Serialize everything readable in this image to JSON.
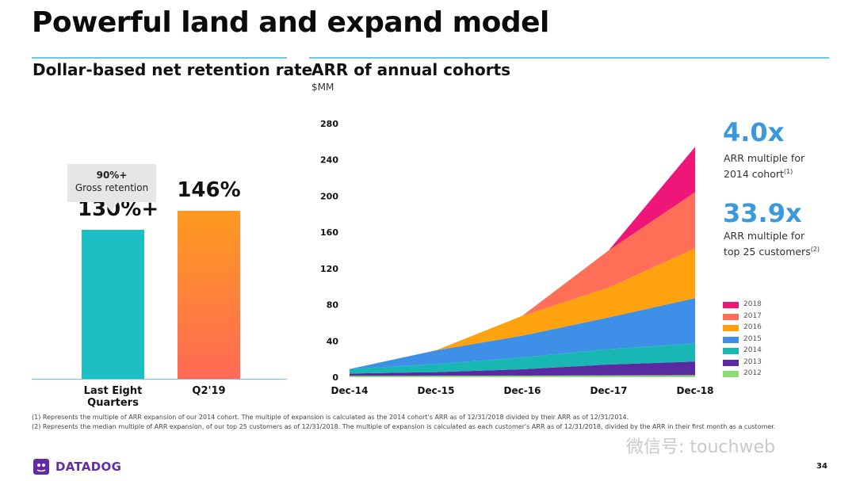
{
  "slide": {
    "title": "Powerful land and expand model",
    "page_number": "34"
  },
  "left_panel": {
    "title": "Dollar-based net retention rate",
    "callout": {
      "value": "90%+",
      "label": "Gross retention"
    }
  },
  "right_panel": {
    "title": "ARR of annual cohorts",
    "units": "$MM",
    "stats": [
      {
        "value": "4.0x",
        "line1": "ARR multiple for",
        "line2": "2014 cohort",
        "note": "(1)"
      },
      {
        "value": "33.9x",
        "line1": "ARR multiple for",
        "line2": "top 25 customers",
        "note": "(2)"
      }
    ]
  },
  "footnotes": [
    "(1) Represents the multiple of ARR expansion of our 2014 cohort. The multiple of expansion is calculated as the 2014 cohort's ARR as of 12/31/2018 divided by their ARR as of 12/31/2014.",
    "(2) Represents the median multiple of ARR expansion, of our top 25 customers as of 12/31/2018. The multiple of expansion is calculated as each customer's ARR as of 12/31/2018, divided by the ARR in their first month as a customer."
  ],
  "logo": {
    "text": "DATADOG"
  },
  "watermark": "微信号: touchweb",
  "colors": {
    "accent_rule": "#6cc7e6",
    "stat_blue": "#3b98db",
    "bar_teal": "#1bbfc4",
    "bar_orange_top": "#ff9a1f",
    "bar_orange_bottom": "#ff6a55",
    "brand_purple": "#632ca6"
  },
  "chart_data": [
    {
      "type": "bar",
      "categories": [
        "Last Eight Quarters",
        "Q2'19"
      ],
      "values": [
        130,
        146
      ],
      "value_labels": [
        "130%+",
        "146%"
      ],
      "ylim": [
        0,
        200
      ]
    },
    {
      "type": "area",
      "stacked": true,
      "x": [
        "Dec-14",
        "Dec-15",
        "Dec-16",
        "Dec-17",
        "Dec-18"
      ],
      "ylim": [
        0,
        280
      ],
      "yticks": [
        0,
        40,
        80,
        120,
        160,
        200,
        240,
        280
      ],
      "legend_position": "right",
      "series": [
        {
          "name": "2012",
          "color": "#8fdc7a",
          "values": [
            1.5,
            1.6,
            1.8,
            2.0,
            2.3
          ]
        },
        {
          "name": "2013",
          "color": "#5a2aa0",
          "values": [
            2.5,
            4,
            7,
            12,
            15
          ]
        },
        {
          "name": "2014",
          "color": "#19b7b3",
          "values": [
            5,
            9,
            13,
            17,
            20
          ]
        },
        {
          "name": "2015",
          "color": "#3e8fe8",
          "values": [
            0,
            15,
            24,
            35,
            50
          ]
        },
        {
          "name": "2016",
          "color": "#ffa20f",
          "values": [
            0,
            0,
            22,
            33,
            55
          ]
        },
        {
          "name": "2017",
          "color": "#ff6e57",
          "values": [
            0,
            0,
            0,
            41,
            62
          ]
        },
        {
          "name": "2018",
          "color": "#ee1677",
          "values": [
            0,
            0,
            0,
            0,
            50
          ]
        }
      ]
    }
  ]
}
